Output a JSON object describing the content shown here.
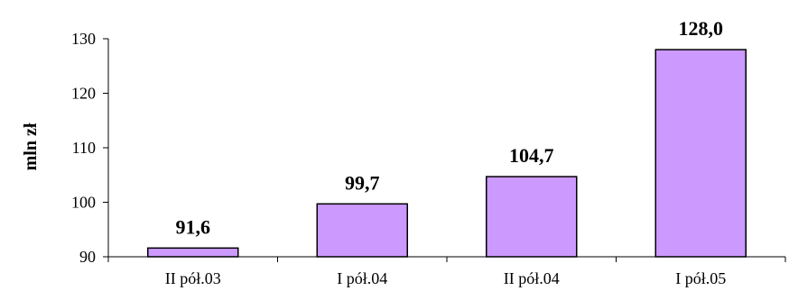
{
  "chart_data": {
    "type": "bar",
    "categories": [
      "II pół.03",
      "I pół.04",
      "II pół.04",
      "I pół.05"
    ],
    "values": [
      91.6,
      99.7,
      104.7,
      128.0
    ],
    "value_labels": [
      "91,6",
      "99,7",
      "104,7",
      "128,0"
    ],
    "ylabel": "mln zł",
    "xlabel": "",
    "ylim": [
      90,
      130
    ],
    "yticks": [
      90,
      100,
      110,
      120,
      130
    ],
    "grid": false,
    "legend": "none",
    "colors": {
      "bar_fill": "#cc99ff",
      "bar_stroke": "#000000",
      "axis": "#000000",
      "text": "#000000"
    }
  }
}
